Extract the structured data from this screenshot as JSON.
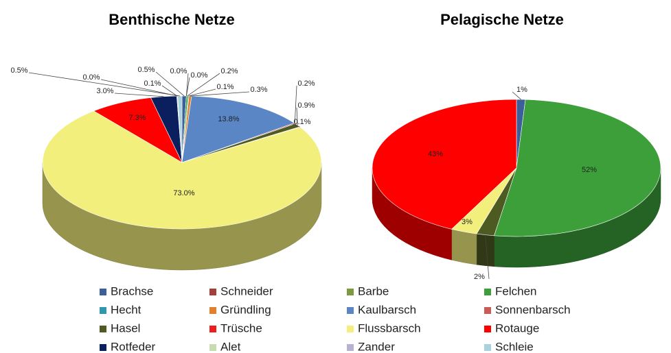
{
  "chart_data": [
    {
      "type": "pie",
      "title": "Benthische Netze",
      "categories": [
        "Brachse",
        "Schneider",
        "Barbe",
        "Felchen",
        "Hecht",
        "Gründling",
        "Kaulbarsch",
        "Sonnenbarsch",
        "Hasel",
        "Trüsche",
        "Flussbarsch",
        "Rotauge",
        "Rotfeder",
        "Alet",
        "Zander",
        "Schleie"
      ],
      "values": [
        0.5,
        0.0,
        0.0,
        0.2,
        0.1,
        0.3,
        13.8,
        0.2,
        0.9,
        0.1,
        73.0,
        7.3,
        3.0,
        0.1,
        0.0,
        0.5
      ],
      "value_labels": [
        "0.5%",
        "0.0%",
        "0.0%",
        "0.2%",
        "0.1%",
        "0.3%",
        "13.8%",
        "0.2%",
        "0.9%",
        "0.1%",
        "73.0%",
        "7.3%",
        "3.0%",
        "0.1%",
        "0.0%",
        "0.5%"
      ],
      "colors": [
        "#3b5f99",
        "#a3403c",
        "#7f9a3e",
        "#3c9f3a",
        "#2f98ae",
        "#e2802b",
        "#5b86c6",
        "#c95c57",
        "#4d5a22",
        "#ee1c1c",
        "#f3ef7d",
        "#ff0000",
        "#0b1f5e",
        "#c9dbb1",
        "#b8b1d1",
        "#a9d2de"
      ]
    },
    {
      "type": "pie",
      "title": "Pelagische Netze",
      "categories": [
        "Brachse",
        "Felchen",
        "Hasel",
        "Flussbarsch",
        "Rotauge"
      ],
      "values": [
        1,
        52,
        2,
        3,
        43
      ],
      "value_labels": [
        "1%",
        "52%",
        "2%",
        "3%",
        "43%"
      ],
      "colors": [
        "#3b5f99",
        "#3c9f3a",
        "#4d5a22",
        "#f3ef7d",
        "#ff0000"
      ]
    }
  ]
}
